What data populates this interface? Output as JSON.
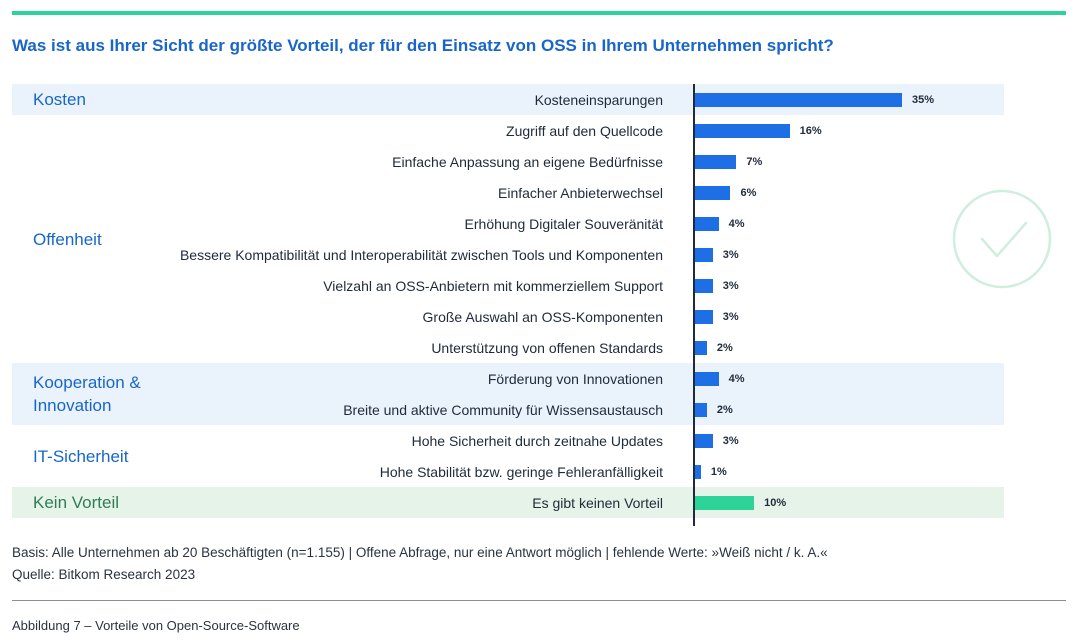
{
  "title": "Was ist aus Ihrer Sicht der größte Vorteil, der für den Einsatz von OSS in Ihrem Unternehmen spricht?",
  "colors": {
    "accent_blue": "#1866c9",
    "bar_blue": "#1e6ee6",
    "bar_green": "#2ed39a",
    "band_blue": "#eaf3fc",
    "band_green": "#e6f3e9"
  },
  "groups": [
    {
      "label": "Kosten",
      "style": "blue",
      "item_count": 1
    },
    {
      "label": "Offenheit",
      "style": "none",
      "item_count": 8
    },
    {
      "label": "Kooperation & Innovation",
      "style": "blue",
      "item_count": 2
    },
    {
      "label": "IT-Sicherheit",
      "style": "none",
      "item_count": 2
    },
    {
      "label": "Kein Vorteil",
      "style": "green",
      "item_count": 1
    }
  ],
  "chart_data": {
    "type": "bar",
    "orientation": "horizontal",
    "title": "Was ist aus Ihrer Sicht der größte Vorteil, der für den Einsatz von OSS in Ihrem Unternehmen spricht?",
    "xlabel": "",
    "ylabel": "",
    "unit": "%",
    "xlim": [
      0,
      35
    ],
    "categories": [
      "Kosteneinsparungen",
      "Zugriff auf den Quellcode",
      "Einfache Anpassung an eigene Bedürfnisse",
      "Einfacher Anbieterwechsel",
      "Erhöhung Digitaler Souveränität",
      "Bessere Kompatibilität und Interoperabilität zwischen Tools und Komponenten",
      "Vielzahl an OSS-Anbietern mit kommerziellem Support",
      "Große Auswahl an OSS-Komponenten",
      "Unterstützung von offenen Standards",
      "Förderung von Innovationen",
      "Breite und aktive Community für Wissensaustausch",
      "Hohe Sicherheit durch zeitnahe Updates",
      "Hohe Stabilität bzw. geringe Fehleranfälligkeit",
      "Es gibt keinen Vorteil"
    ],
    "values": [
      35,
      16,
      7,
      6,
      4,
      3,
      3,
      3,
      2,
      4,
      2,
      3,
      1,
      10
    ],
    "value_labels": [
      "35%",
      "16%",
      "7%",
      "6%",
      "4%",
      "3%",
      "3%",
      "3%",
      "2%",
      "4%",
      "2%",
      "3%",
      "1%",
      "10%"
    ],
    "highlight_last": true
  },
  "footer": {
    "basis": "Basis: Alle Unternehmen ab 20 Beschäftigten (n=1.155) | Offene Abfrage, nur eine Antwort möglich | fehlende Werte: »Weiß nicht / k. A.«",
    "source": "Quelle: Bitkom Research 2023",
    "caption": "Abbildung 7 – Vorteile von Open-Source-Software"
  }
}
